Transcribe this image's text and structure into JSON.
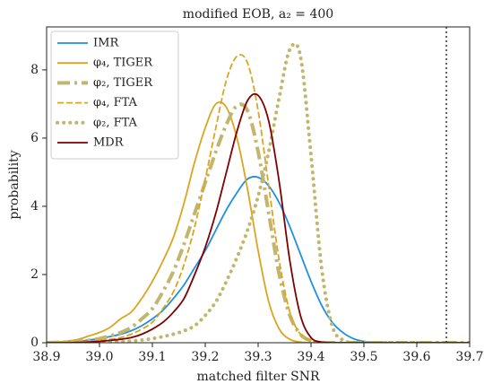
{
  "chart_data": {
    "type": "line",
    "title": "modified EOB, a₂ = 400",
    "xlabel": "matched filter SNR",
    "ylabel": "probability",
    "xlim": [
      38.9,
      39.7
    ],
    "ylim": [
      0,
      9.26
    ],
    "xticks": [
      38.9,
      {
        "value": 39,
        "label": "39.0"
      },
      39.1,
      39.2,
      39.3,
      39.4,
      39.5,
      39.6,
      39.7
    ],
    "yticks": [
      0,
      2,
      4,
      6,
      8
    ],
    "vline": 39.656,
    "legend": "upper left",
    "x": [
      38.9,
      38.92,
      38.94,
      38.96,
      38.98,
      39.0,
      39.02,
      39.04,
      39.06,
      39.08,
      39.1,
      39.12,
      39.14,
      39.16,
      39.18,
      39.2,
      39.22,
      39.24,
      39.26,
      39.28,
      39.3,
      39.32,
      39.34,
      39.36,
      39.38,
      39.4,
      39.42,
      39.44,
      39.46,
      39.48,
      39.5,
      39.52,
      39.54,
      39.56,
      39.58,
      39.6,
      39.62,
      39.64,
      39.66,
      39.68,
      39.7
    ],
    "series": [
      {
        "name": "IMR",
        "color": "#1f8fe6",
        "dash": "solid",
        "width": 1.8,
        "values": [
          0,
          0.01,
          0.02,
          0.04,
          0.08,
          0.12,
          0.18,
          0.25,
          0.35,
          0.5,
          0.7,
          0.95,
          1.3,
          1.7,
          2.2,
          2.7,
          3.3,
          3.9,
          4.4,
          4.8,
          4.85,
          4.6,
          4.1,
          3.4,
          2.6,
          1.8,
          1.1,
          0.6,
          0.3,
          0.12,
          0.04,
          0.01,
          0,
          0,
          0,
          0,
          0,
          0,
          0,
          0,
          0
        ]
      },
      {
        "name": "φ₄, TIGER",
        "color": "#daa520",
        "dash": "solid",
        "width": 1.8,
        "values": [
          0,
          0.02,
          0.05,
          0.1,
          0.2,
          0.3,
          0.45,
          0.7,
          0.9,
          1.3,
          1.8,
          2.4,
          3.1,
          4.1,
          5.3,
          6.3,
          7.0,
          6.9,
          6.0,
          4.5,
          2.7,
          1.2,
          0.4,
          0.1,
          0.02,
          0,
          0,
          0,
          0,
          0,
          0,
          0,
          0,
          0,
          0,
          0,
          0,
          0,
          0,
          0,
          0
        ]
      },
      {
        "name": "φ₂, TIGER",
        "color": "#c2b56e",
        "dash": "dashdot",
        "width": 4,
        "values": [
          0,
          0.01,
          0.02,
          0.04,
          0.07,
          0.12,
          0.2,
          0.3,
          0.45,
          0.7,
          1.0,
          1.5,
          2.1,
          2.9,
          3.8,
          4.7,
          5.6,
          6.4,
          6.95,
          6.8,
          5.6,
          3.8,
          2.0,
          0.8,
          0.25,
          0.06,
          0.01,
          0,
          0,
          0,
          0,
          0,
          0,
          0,
          0,
          0,
          0,
          0,
          0,
          0,
          0
        ]
      },
      {
        "name": "φ₄, FTA",
        "color": "#daa520",
        "dash": "dashed",
        "width": 1.8,
        "values": [
          0,
          0,
          0.01,
          0.02,
          0.04,
          0.07,
          0.1,
          0.15,
          0.25,
          0.4,
          0.6,
          1.0,
          1.5,
          2.3,
          3.4,
          4.8,
          6.3,
          7.7,
          8.4,
          8.2,
          6.8,
          4.6,
          2.4,
          0.9,
          0.25,
          0.05,
          0.01,
          0,
          0,
          0,
          0,
          0,
          0,
          0,
          0,
          0,
          0,
          0,
          0,
          0,
          0
        ]
      },
      {
        "name": "φ₂, FTA",
        "color": "#c2b56e",
        "dash": "dotted",
        "width": 4,
        "values": [
          0,
          0,
          0,
          0,
          0,
          0.01,
          0.02,
          0.03,
          0.05,
          0.08,
          0.12,
          0.18,
          0.25,
          0.35,
          0.5,
          0.8,
          1.2,
          1.8,
          2.5,
          3.3,
          4.3,
          5.6,
          7.2,
          8.6,
          8.4,
          5.5,
          2.2,
          0.5,
          0.08,
          0.01,
          0,
          0,
          0,
          0,
          0,
          0,
          0,
          0,
          0,
          0,
          0
        ]
      },
      {
        "name": "MDR",
        "color": "#7f0000",
        "dash": "solid",
        "width": 1.8,
        "values": [
          0,
          0,
          0,
          0.01,
          0.02,
          0.04,
          0.07,
          0.1,
          0.15,
          0.25,
          0.4,
          0.6,
          0.9,
          1.3,
          2.0,
          2.8,
          3.8,
          5.0,
          6.2,
          7.1,
          7.25,
          6.5,
          4.7,
          2.4,
          0.8,
          0.15,
          0.02,
          0,
          0,
          0,
          0,
          0,
          0,
          0,
          0,
          0,
          0,
          0,
          0,
          0,
          0
        ]
      }
    ]
  }
}
